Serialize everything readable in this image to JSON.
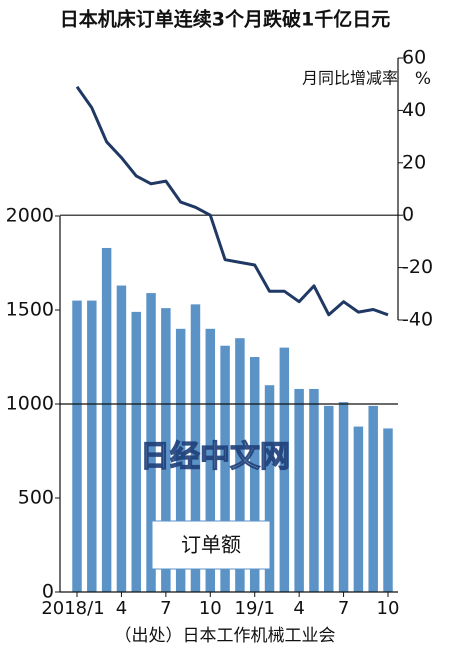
{
  "chart_data": {
    "type": "bar-line",
    "title": "日本机床订单连续3个月跌破1千亿日元",
    "categories": [
      "2018/1",
      null,
      null,
      "4",
      null,
      null,
      "7",
      null,
      null,
      "10",
      null,
      null,
      "19/1",
      null,
      null,
      "4",
      null,
      null,
      "7",
      null,
      null,
      "10"
    ],
    "series": [
      {
        "name": "订单额",
        "type": "bar",
        "color": "#5b93c7",
        "values": [
          1550,
          1550,
          1830,
          1630,
          1490,
          1590,
          1510,
          1400,
          1530,
          1400,
          1310,
          1350,
          1250,
          1100,
          1300,
          1080,
          1080,
          990,
          1010,
          880,
          990,
          870
        ]
      },
      {
        "name": "月同比增减率",
        "type": "line",
        "axis": "y2",
        "color": "#1f3864",
        "values": [
          49,
          41,
          28,
          22,
          15,
          12,
          13,
          5,
          3,
          0,
          -17,
          -18,
          -19,
          -29,
          -29,
          -33,
          -27,
          -38,
          -33,
          -37,
          -36,
          -38
        ]
      }
    ],
    "ylim": [
      0,
      2000
    ],
    "yticks": [
      0,
      500,
      1000,
      1500,
      2000
    ],
    "y2lim": [
      -40,
      60
    ],
    "y2ticks": [
      -40,
      -20,
      0,
      20,
      40,
      60
    ],
    "y2_unit": "%",
    "ref_lines": [
      {
        "axis": "y",
        "value": 1000
      },
      {
        "axis": "y2",
        "value": 0
      }
    ],
    "watermark": "日经中文网",
    "source": "（出处）日本工作机械工业会"
  }
}
